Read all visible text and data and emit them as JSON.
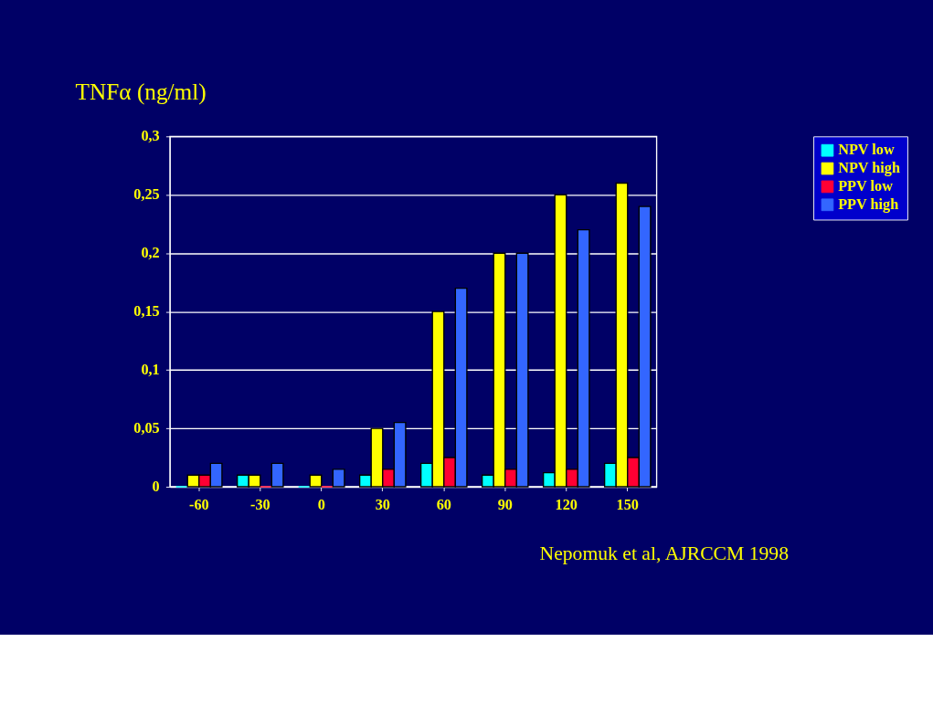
{
  "chart_data": {
    "type": "bar",
    "ylabel": "TNFα (ng/ml)",
    "categories": [
      "-60",
      "-30",
      "0",
      "30",
      "60",
      "90",
      "120",
      "150"
    ],
    "series": [
      {
        "name": "NPV low",
        "color": "#00ffff",
        "values": [
          0,
          0.01,
          0,
          0.01,
          0.02,
          0.01,
          0.012,
          0.02
        ]
      },
      {
        "name": "NPV high",
        "color": "#ffff00",
        "values": [
          0.01,
          0.01,
          0.01,
          0.05,
          0.15,
          0.2,
          0.25,
          0.26
        ]
      },
      {
        "name": "PPV low",
        "color": "#ff0033",
        "values": [
          0.01,
          0,
          0,
          0.015,
          0.025,
          0.015,
          0.015,
          0.025
        ]
      },
      {
        "name": "PPV high",
        "color": "#3366ff",
        "values": [
          0.02,
          0.02,
          0.015,
          0.055,
          0.17,
          0.2,
          0.22,
          0.24
        ]
      }
    ],
    "ylim": [
      0,
      0.3
    ],
    "yticks": [
      0,
      {
        "value": 0.05,
        "label": "0,05"
      },
      {
        "value": 0.1,
        "label": "0,1"
      },
      {
        "value": 0.15,
        "label": "0,15"
      },
      {
        "value": 0.2,
        "label": "0,2"
      },
      {
        "value": 0.25,
        "label": "0,25"
      },
      {
        "value": 0.3,
        "label": "0,3"
      }
    ],
    "grid": "y",
    "legend": "right",
    "annotations": [
      "Nepomuk et al, AJRCCM 1998"
    ]
  }
}
